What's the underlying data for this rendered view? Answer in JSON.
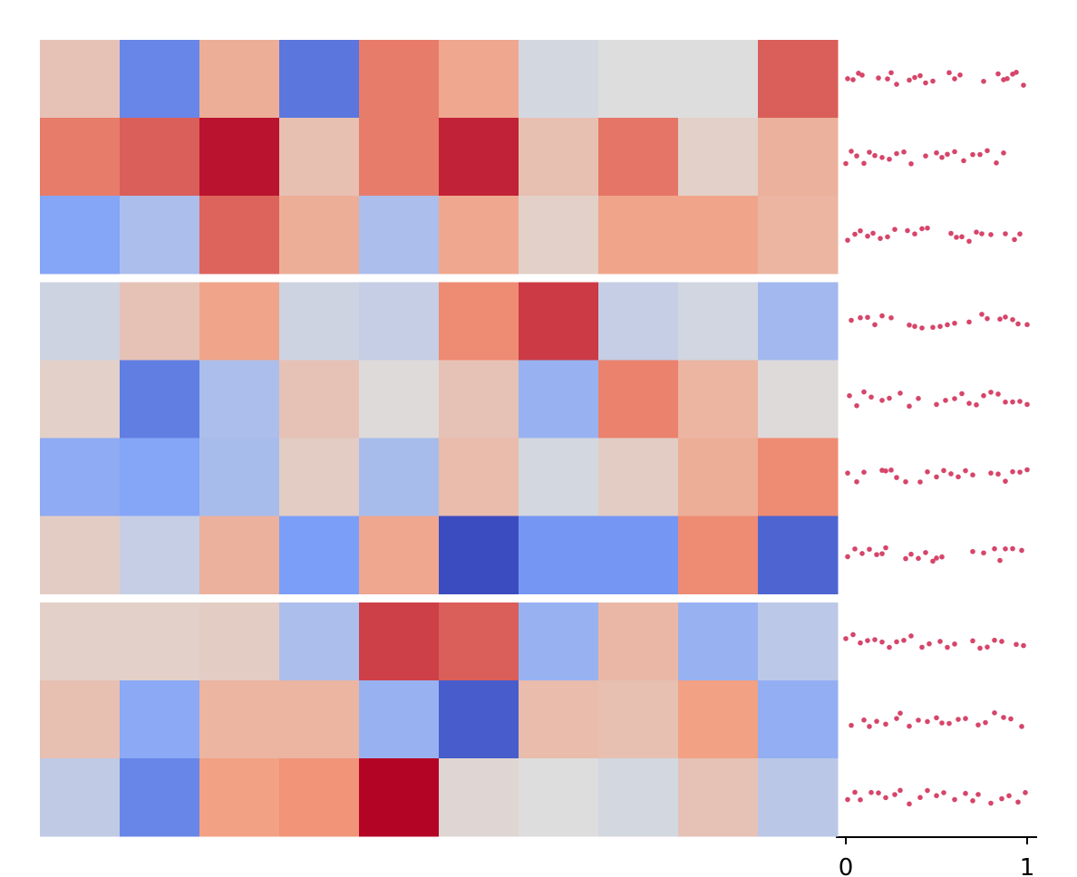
{
  "chart_data": {
    "type": "heatmap",
    "colormap": "coolwarm",
    "color_range": [
      -1,
      1
    ],
    "row_groups": [
      3,
      4,
      3
    ],
    "values": [
      [
        0.2,
        -0.65,
        0.35,
        -0.75,
        0.6,
        0.4,
        -0.05,
        0.0,
        0.0,
        0.7
      ],
      [
        0.6,
        0.7,
        0.95,
        0.22,
        0.6,
        0.9,
        0.22,
        0.62,
        0.1,
        0.33
      ],
      [
        -0.45,
        -0.25,
        0.68,
        0.35,
        -0.25,
        0.4,
        0.1,
        0.42,
        0.42,
        0.3
      ],
      [
        -0.08,
        0.2,
        0.42,
        -0.08,
        -0.12,
        0.55,
        0.82,
        -0.12,
        -0.06,
        -0.3
      ],
      [
        0.1,
        -0.7,
        -0.25,
        0.2,
        0.02,
        0.2,
        -0.35,
        0.58,
        0.3,
        0.02
      ],
      [
        -0.4,
        -0.45,
        -0.27,
        0.13,
        -0.27,
        0.25,
        -0.05,
        0.13,
        0.35,
        0.55
      ],
      [
        0.13,
        -0.12,
        0.33,
        -0.5,
        0.4,
        -1.0,
        -0.55,
        -0.55,
        0.55,
        -0.85
      ],
      [
        0.1,
        0.1,
        0.13,
        -0.25,
        0.8,
        0.7,
        -0.35,
        0.28,
        -0.35,
        -0.17
      ],
      [
        0.22,
        -0.42,
        0.3,
        0.3,
        -0.35,
        -0.9,
        0.25,
        0.22,
        0.45,
        -0.38
      ],
      [
        -0.15,
        -0.65,
        0.45,
        0.52,
        1.0,
        0.05,
        0.0,
        -0.05,
        0.2,
        -0.18
      ]
    ],
    "annotation": {
      "type": "strip",
      "color": "#d6456a",
      "xlim": [
        0,
        1
      ],
      "xticks": [
        0,
        1
      ],
      "values": [
        [
          0.01,
          0.04,
          0.07,
          0.09,
          0.18,
          0.23,
          0.25,
          0.28,
          0.35,
          0.38,
          0.41,
          0.44,
          0.48,
          0.57,
          0.6,
          0.63,
          0.76,
          0.84,
          0.87,
          0.89,
          0.92,
          0.94,
          0.98
        ],
        [
          0.0,
          0.03,
          0.06,
          0.1,
          0.13,
          0.16,
          0.2,
          0.24,
          0.28,
          0.32,
          0.36,
          0.44,
          0.5,
          0.53,
          0.56,
          0.6,
          0.65,
          0.7,
          0.74,
          0.78,
          0.83,
          0.87
        ],
        [
          0.01,
          0.05,
          0.08,
          0.12,
          0.15,
          0.19,
          0.23,
          0.27,
          0.34,
          0.38,
          0.42,
          0.45,
          0.58,
          0.61,
          0.64,
          0.68,
          0.72,
          0.75,
          0.8,
          0.88,
          0.93,
          0.96
        ],
        [
          0.03,
          0.08,
          0.12,
          0.16,
          0.2,
          0.25,
          0.35,
          0.38,
          0.42,
          0.48,
          0.52,
          0.56,
          0.6,
          0.68,
          0.75,
          0.78,
          0.85,
          0.88,
          0.92,
          0.95,
          1.0
        ],
        [
          0.02,
          0.06,
          0.1,
          0.14,
          0.2,
          0.24,
          0.3,
          0.35,
          0.4,
          0.5,
          0.55,
          0.6,
          0.64,
          0.68,
          0.72,
          0.76,
          0.8,
          0.84,
          0.88,
          0.92,
          0.96,
          1.0
        ],
        [
          0.01,
          0.06,
          0.1,
          0.2,
          0.22,
          0.25,
          0.28,
          0.33,
          0.41,
          0.45,
          0.5,
          0.54,
          0.58,
          0.62,
          0.66,
          0.7,
          0.8,
          0.84,
          0.88,
          0.92,
          0.96,
          1.0
        ],
        [
          0.01,
          0.05,
          0.09,
          0.13,
          0.17,
          0.2,
          0.22,
          0.33,
          0.36,
          0.4,
          0.44,
          0.48,
          0.5,
          0.53,
          0.7,
          0.76,
          0.82,
          0.85,
          0.88,
          0.92,
          0.97
        ],
        [
          0.0,
          0.04,
          0.08,
          0.12,
          0.16,
          0.2,
          0.24,
          0.28,
          0.32,
          0.36,
          0.42,
          0.46,
          0.52,
          0.56,
          0.6,
          0.7,
          0.74,
          0.78,
          0.82,
          0.86,
          0.94,
          0.98
        ],
        [
          0.03,
          0.1,
          0.13,
          0.17,
          0.22,
          0.28,
          0.3,
          0.35,
          0.4,
          0.45,
          0.5,
          0.53,
          0.57,
          0.62,
          0.66,
          0.73,
          0.77,
          0.82,
          0.87,
          0.91,
          0.97
        ],
        [
          0.01,
          0.05,
          0.08,
          0.14,
          0.18,
          0.22,
          0.27,
          0.3,
          0.35,
          0.41,
          0.45,
          0.5,
          0.54,
          0.6,
          0.66,
          0.7,
          0.73,
          0.8,
          0.86,
          0.9,
          0.95,
          0.99
        ]
      ]
    }
  }
}
